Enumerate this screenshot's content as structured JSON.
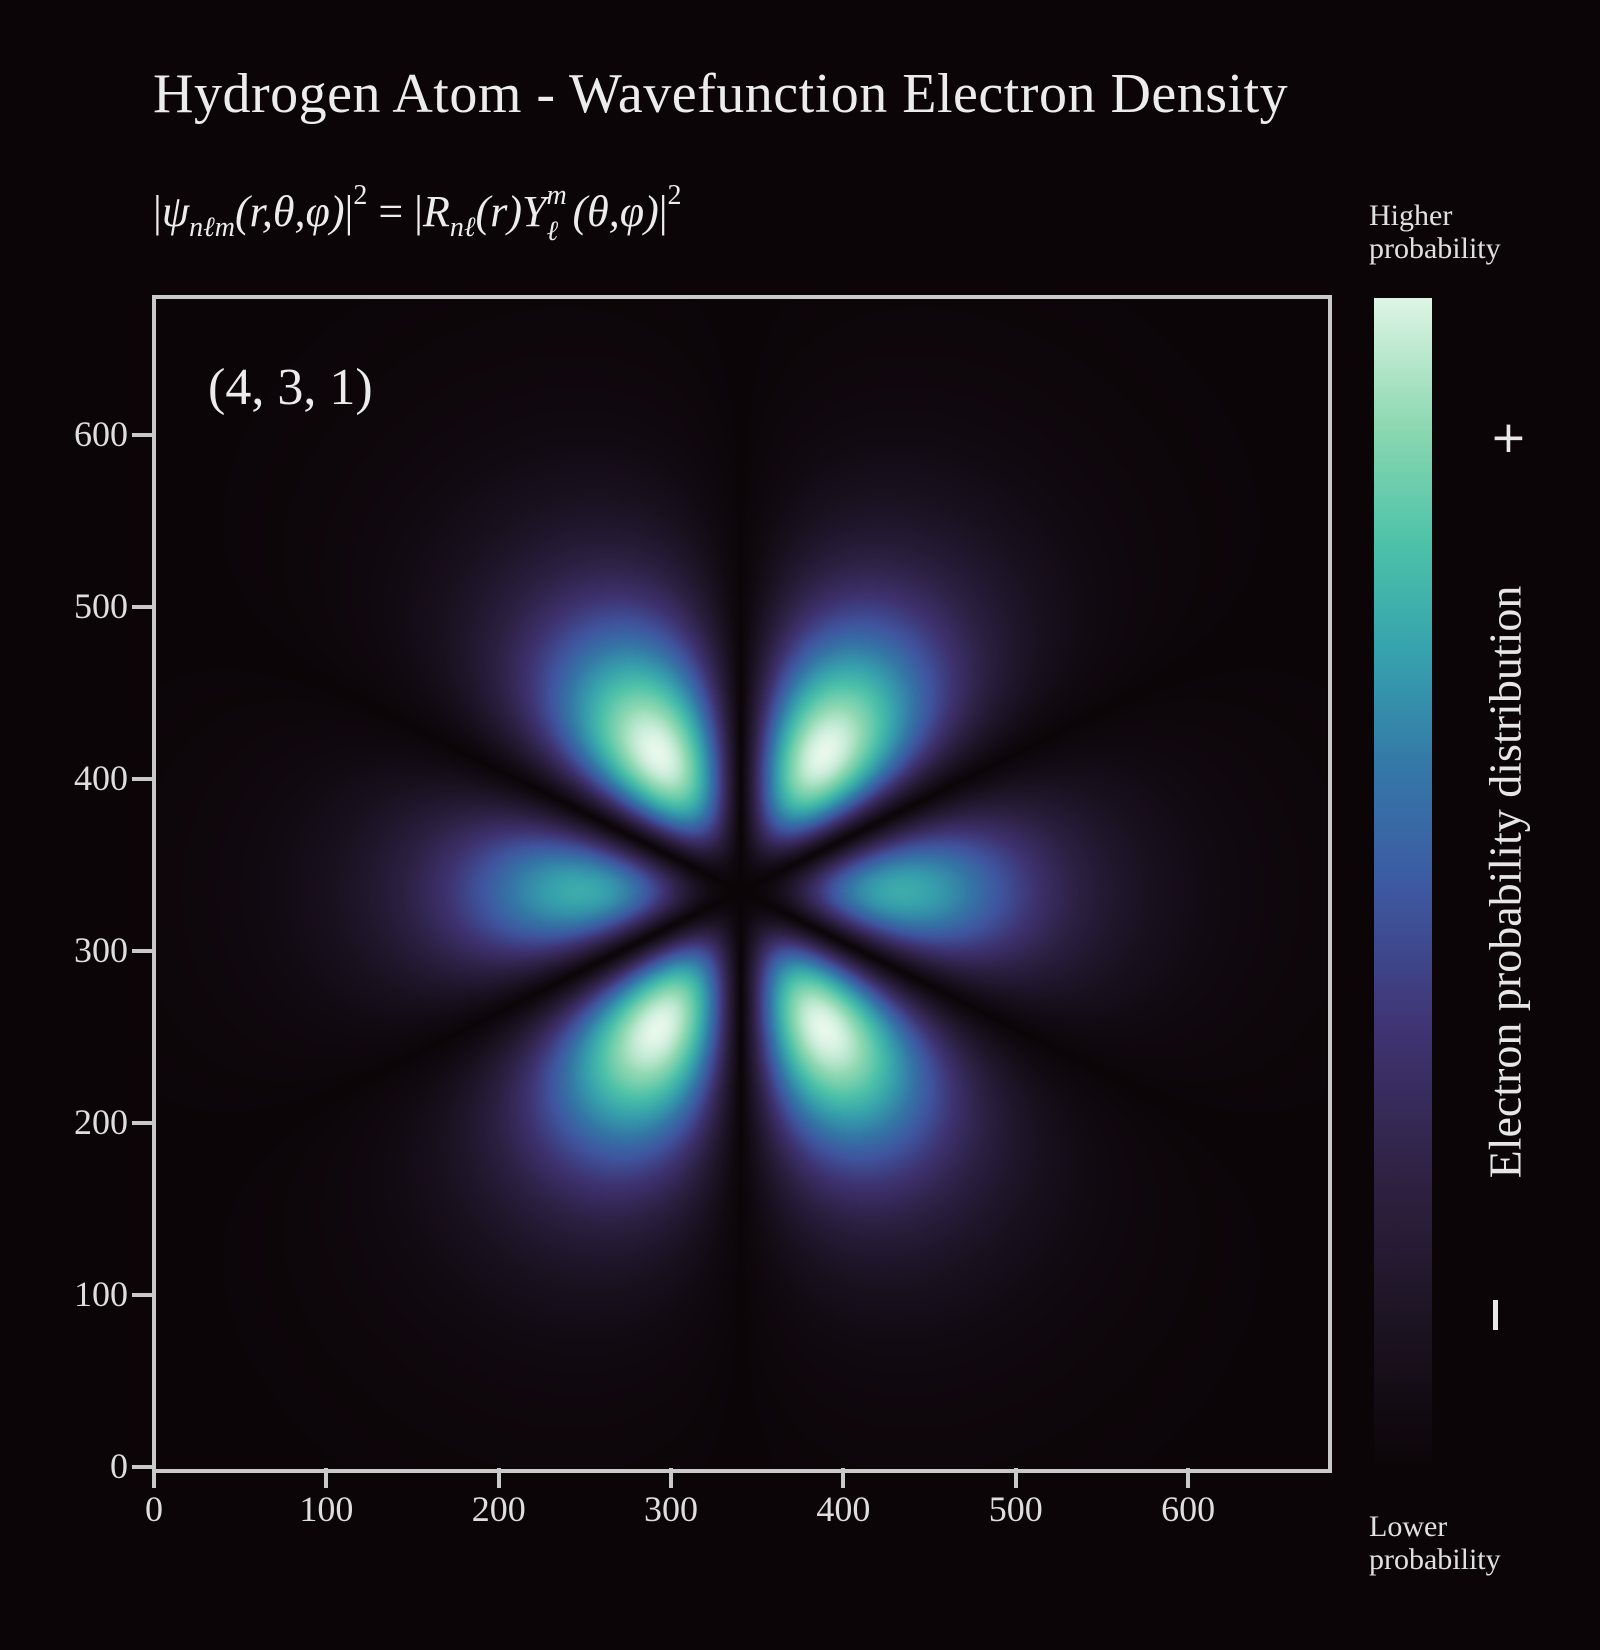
{
  "header": {
    "title": "Hydrogen Atom - Wavefunction Electron Density"
  },
  "formula": {
    "psi": "ψ",
    "psi_sub": "nℓm",
    "psi_args": "(r,θ,φ)",
    "R": "R",
    "R_sub": "nℓ",
    "R_args": "(r)",
    "Y": "Y",
    "Y_sup": "m",
    "Y_sub": "ℓ",
    "Y_args": "(θ,φ)",
    "exponent": "2"
  },
  "state_label": "(4, 3, 1)",
  "colorbar": {
    "top_label_1": "Higher",
    "top_label_2": "probability",
    "bottom_label_1": "Lower",
    "bottom_label_2": "probability",
    "plus": "+",
    "minus": "–",
    "axis_label": "Electron probability distribution",
    "colors": [
      "#0c0508",
      "#2f2243",
      "#403575",
      "#3478a8",
      "#36a3ad",
      "#4dc2a9",
      "#def5e5"
    ]
  },
  "chart_data": {
    "type": "heatmap",
    "title": "Hydrogen Atom - Wavefunction Electron Density",
    "quantum_numbers": {
      "n": 4,
      "l": 3,
      "m": 1
    },
    "xlim": [
      0,
      680
    ],
    "ylim": [
      0,
      680
    ],
    "x_ticks": [
      0,
      100,
      200,
      300,
      400,
      500,
      600
    ],
    "y_ticks": [
      0,
      100,
      200,
      300,
      400,
      500,
      600
    ],
    "grid": false,
    "colormap": "mako",
    "colorbar_label": "Electron probability distribution"
  }
}
